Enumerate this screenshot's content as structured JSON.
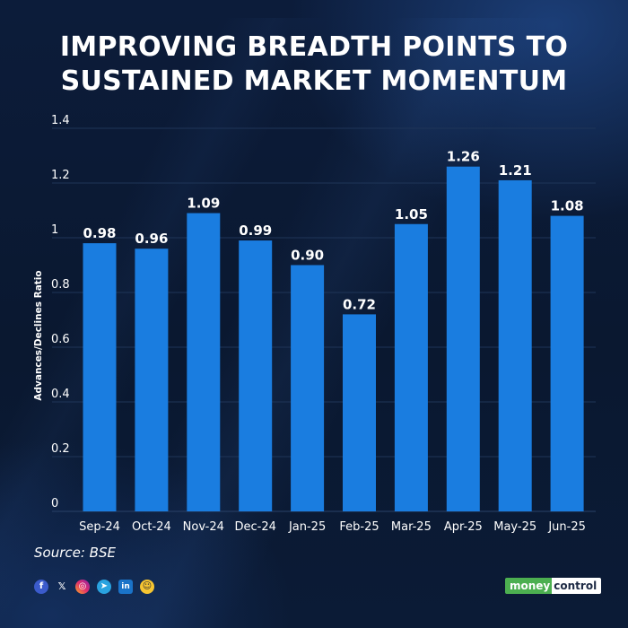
{
  "title": {
    "line1": "IMPROVING BREADTH POINTS TO",
    "line2": "SUSTAINED MARKET MOMENTUM"
  },
  "chart_data": {
    "type": "bar",
    "title": "IMPROVING BREADTH POINTS TO SUSTAINED MARKET MOMENTUM",
    "categories": [
      "Sep-24",
      "Oct-24",
      "Nov-24",
      "Dec-24",
      "Jan-25",
      "Feb-25",
      "Mar-25",
      "Apr-25",
      "May-25",
      "Jun-25"
    ],
    "values": [
      0.98,
      0.96,
      1.09,
      0.99,
      0.9,
      0.72,
      1.05,
      1.26,
      1.21,
      1.08
    ],
    "value_labels": [
      "0.98",
      "0.96",
      "1.09",
      "0.99",
      "0.90",
      "0.72",
      "1.05",
      "1.26",
      "1.21",
      "1.08"
    ],
    "xlabel": "",
    "ylabel": "Advances/Declines Ratio",
    "ylim": [
      0,
      1.4
    ],
    "yticks": [
      0,
      0.2,
      0.4,
      0.6,
      0.8,
      1,
      1.2,
      1.4
    ],
    "ytick_labels": [
      "0",
      "0.2",
      "0.4",
      "0.6",
      "0.8",
      "1",
      "1.2",
      "1.4"
    ],
    "grid": true,
    "legend": "none",
    "bar_color": "#1a7de0",
    "grid_color": "#1f3558"
  },
  "source": "Source: BSE",
  "socials": [
    {
      "icon": "facebook-icon",
      "glyph": "f"
    },
    {
      "icon": "x-icon",
      "glyph": "𝕏"
    },
    {
      "icon": "instagram-icon",
      "glyph": "◎"
    },
    {
      "icon": "telegram-icon",
      "glyph": "➤"
    },
    {
      "icon": "linkedin-icon",
      "glyph": "in"
    },
    {
      "icon": "snapchat-icon",
      "glyph": "☺"
    }
  ],
  "brand": {
    "part1": "money",
    "part2": "control",
    "accent": "#4caf50"
  }
}
